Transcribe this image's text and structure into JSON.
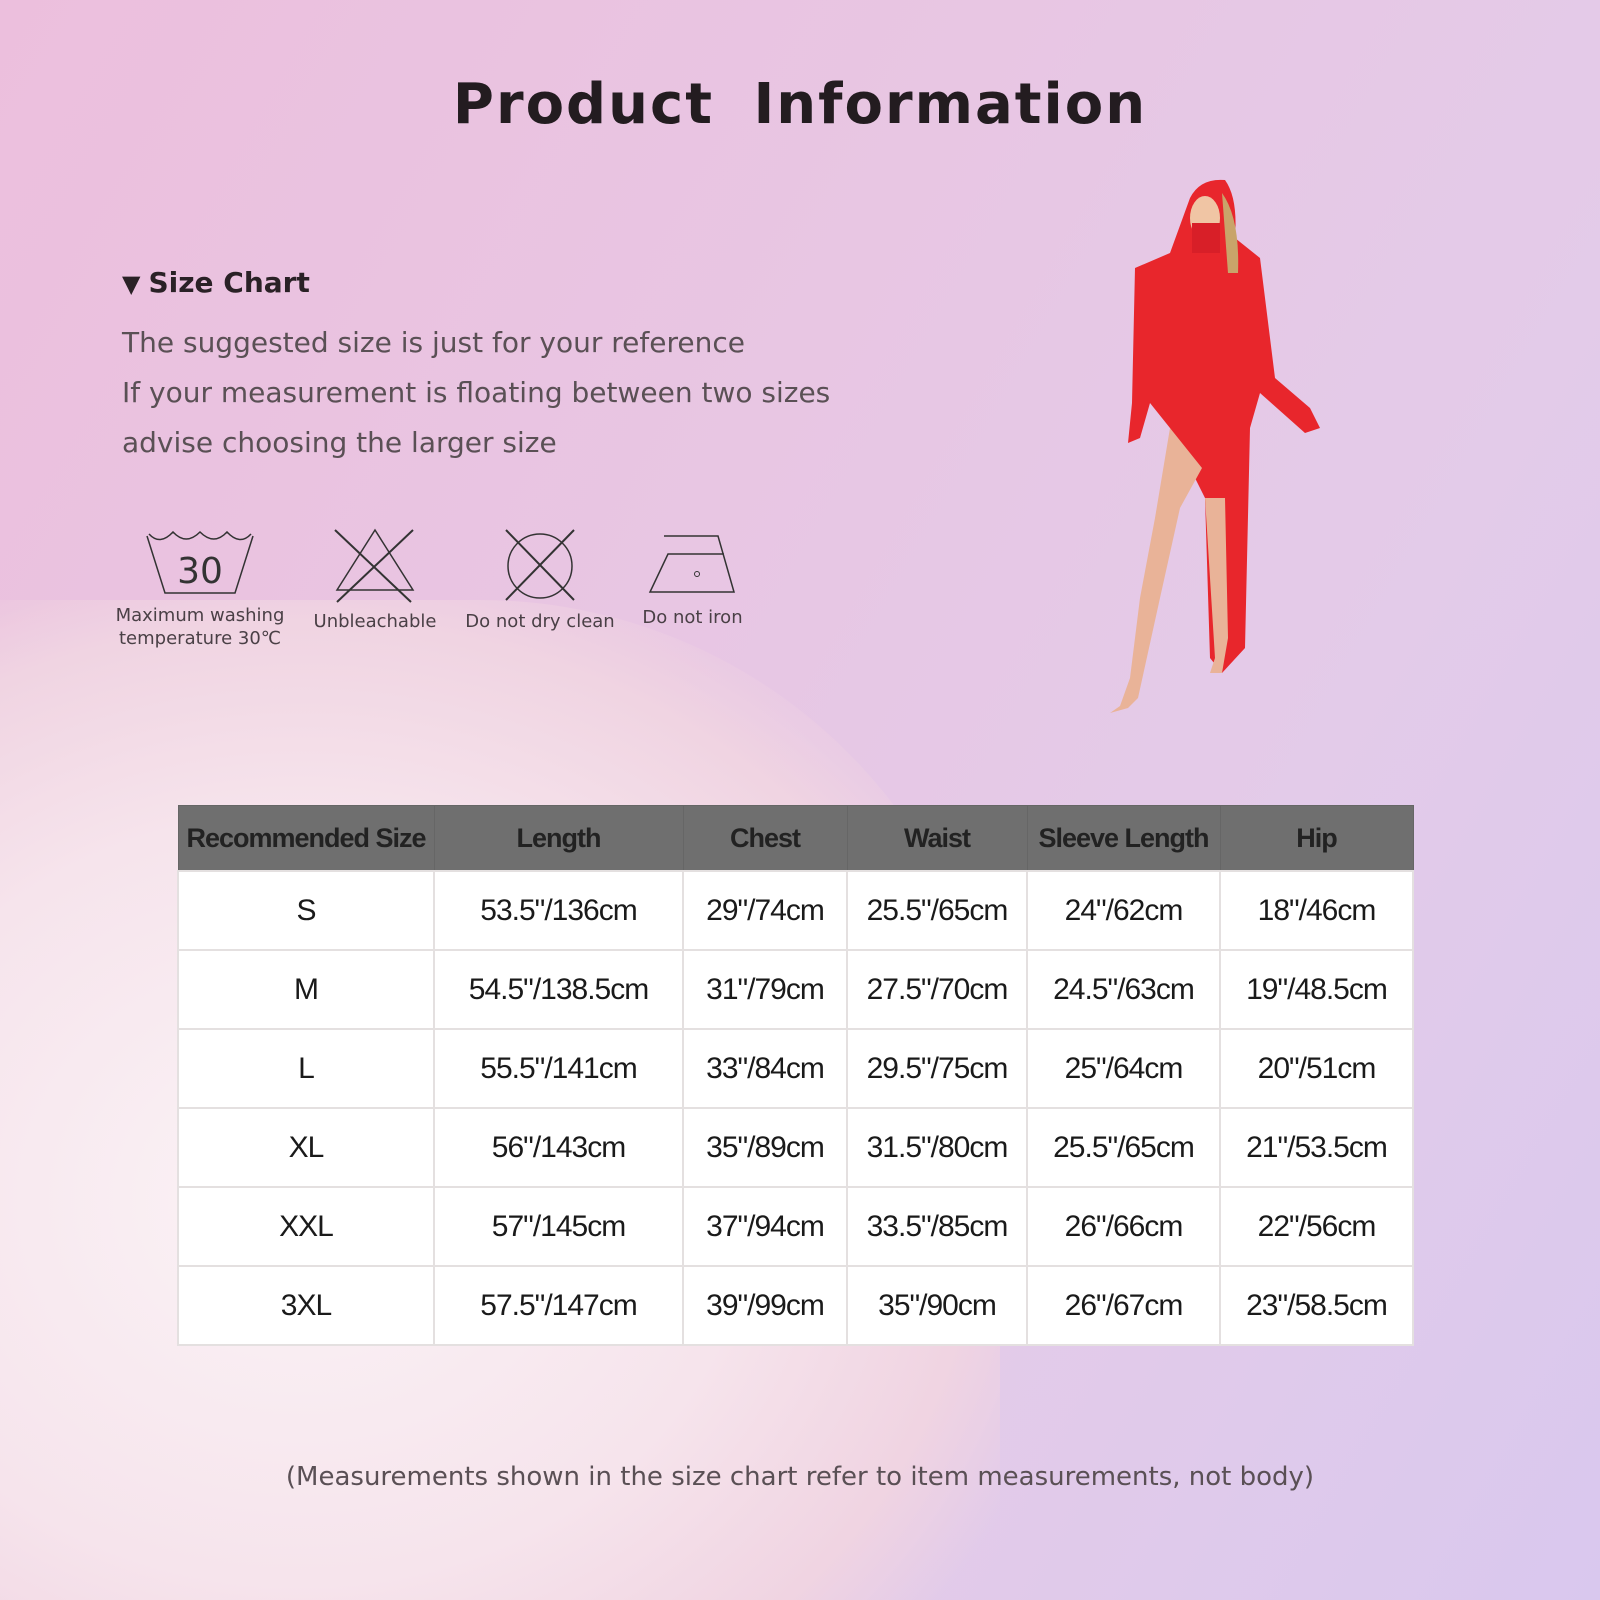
{
  "title": "Product  Information",
  "size_chart": {
    "heading": "Size Chart",
    "lines": [
      "The suggested size is just for your reference",
      "If your measurement is floating between two sizes",
      "advise choosing the larger size"
    ]
  },
  "care": [
    {
      "icon": "wash-30-icon",
      "number": "30",
      "label_1": "Maximum washing",
      "label_2": "temperature 30℃"
    },
    {
      "icon": "no-bleach-icon",
      "label_1": "Unbleachable"
    },
    {
      "icon": "no-dry-clean-icon",
      "label_1": "Do not dry clean"
    },
    {
      "icon": "iron-icon",
      "label_1": "Do not iron"
    }
  ],
  "table": {
    "headers": [
      "Recommended Size",
      "Length",
      "Chest",
      "Waist",
      "Sleeve Length",
      "Hip"
    ],
    "rows": [
      [
        "S",
        "53.5\"/136cm",
        "29\"/74cm",
        "25.5\"/65cm",
        "24\"/62cm",
        "18\"/46cm"
      ],
      [
        "M",
        "54.5\"/138.5cm",
        "31\"/79cm",
        "27.5\"/70cm",
        "24.5\"/63cm",
        "19\"/48.5cm"
      ],
      [
        "L",
        "55.5\"/141cm",
        "33\"/84cm",
        "29.5\"/75cm",
        "25\"/64cm",
        "20\"/51cm"
      ],
      [
        "XL",
        "56\"/143cm",
        "35\"/89cm",
        "31.5\"/80cm",
        "25.5\"/65cm",
        "21\"/53.5cm"
      ],
      [
        "XXL",
        "57\"/145cm",
        "37\"/94cm",
        "33.5\"/85cm",
        "26\"/66cm",
        "22\"/56cm"
      ],
      [
        "3XL",
        "57.5\"/147cm",
        "39\"/99cm",
        "35\"/90cm",
        "26\"/67cm",
        "23\"/58.5cm"
      ]
    ]
  },
  "note": "(Measurements shown in the size chart refer to item measurements, not body)",
  "colors": {
    "header_bg": "#6f6f6f",
    "garment": "#e8262c"
  }
}
